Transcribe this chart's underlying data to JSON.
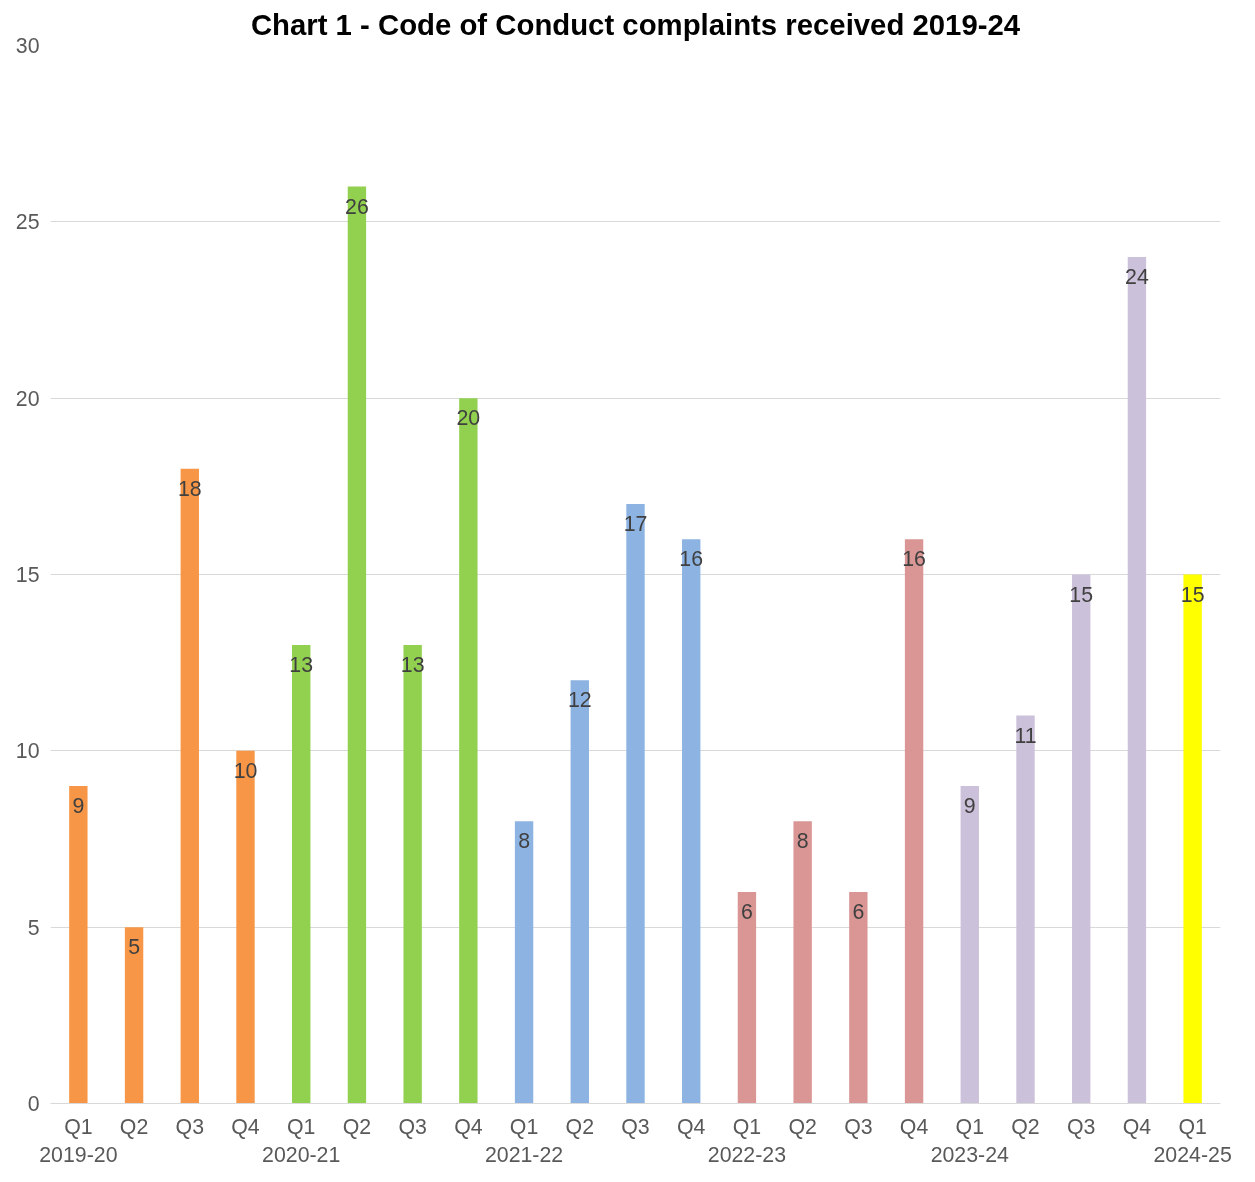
{
  "chart_data": {
    "type": "bar",
    "title": "Chart 1 - Code of Conduct complaints received 2019-24",
    "categories": [
      "Q1 2019-20",
      "Q2",
      "Q3",
      "Q4",
      "Q1 2020-21",
      "Q2",
      "Q3",
      "Q4",
      "Q1 2021-22",
      "Q2",
      "Q3",
      "Q4",
      "Q1 2022-23",
      "Q2",
      "Q3",
      "Q4",
      "Q1 2023-24",
      "Q2",
      "Q3",
      "Q4",
      "Q1 2024-25"
    ],
    "values": [
      9,
      5,
      18,
      10,
      13,
      26,
      13,
      20,
      8,
      12,
      17,
      16,
      6,
      8,
      6,
      16,
      9,
      11,
      15,
      24,
      15
    ],
    "colors": [
      "#f79646",
      "#f79646",
      "#f79646",
      "#f79646",
      "#92d050",
      "#92d050",
      "#92d050",
      "#92d050",
      "#8db3e2",
      "#8db3e2",
      "#8db3e2",
      "#8db3e2",
      "#d99694",
      "#d99694",
      "#d99694",
      "#d99694",
      "#ccc1da",
      "#ccc1da",
      "#ccc1da",
      "#ccc1da",
      "#ffff00"
    ],
    "ylim": [
      0,
      30
    ],
    "yticks": [
      0,
      5,
      10,
      15,
      20,
      25,
      30
    ],
    "grid": "y",
    "data_labels": true
  }
}
